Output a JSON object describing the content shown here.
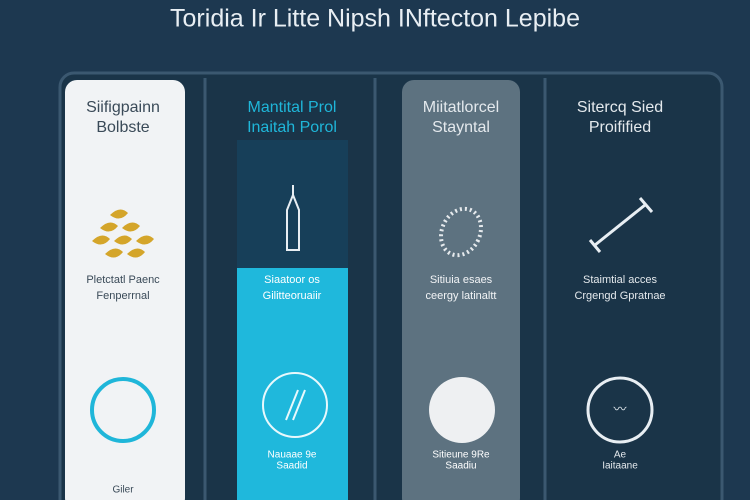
{
  "title": "Toridia Ir Litte Nipsh INftecton Lepibe",
  "columns": [
    {
      "heading": [
        "Siifigpainn",
        "Bolbste"
      ],
      "caption": [
        "Pletctatl Paenc",
        "Fenperrnal"
      ],
      "footer": [
        "Giler"
      ]
    },
    {
      "heading": [
        "Mantital Prol",
        "Inaitah Porol"
      ],
      "caption": [
        "Siaatoor os",
        "Gilitteoruaiir"
      ],
      "footer": [
        "Nauaae 9e",
        "Saadid"
      ]
    },
    {
      "heading": [
        "Miitatlorcel",
        "Stayntal"
      ],
      "caption": [
        "Sitiuia esaes",
        "ceergy latinaltt"
      ],
      "footer": [
        "Sitieune 9Re",
        "Saadiu"
      ]
    },
    {
      "heading": [
        "Sitercq Sied",
        "Proifified"
      ],
      "caption": [
        "Staimtial acces",
        "Crgengd Gpratnae"
      ],
      "footer": [
        "Ae",
        "Iaitaane"
      ]
    }
  ]
}
